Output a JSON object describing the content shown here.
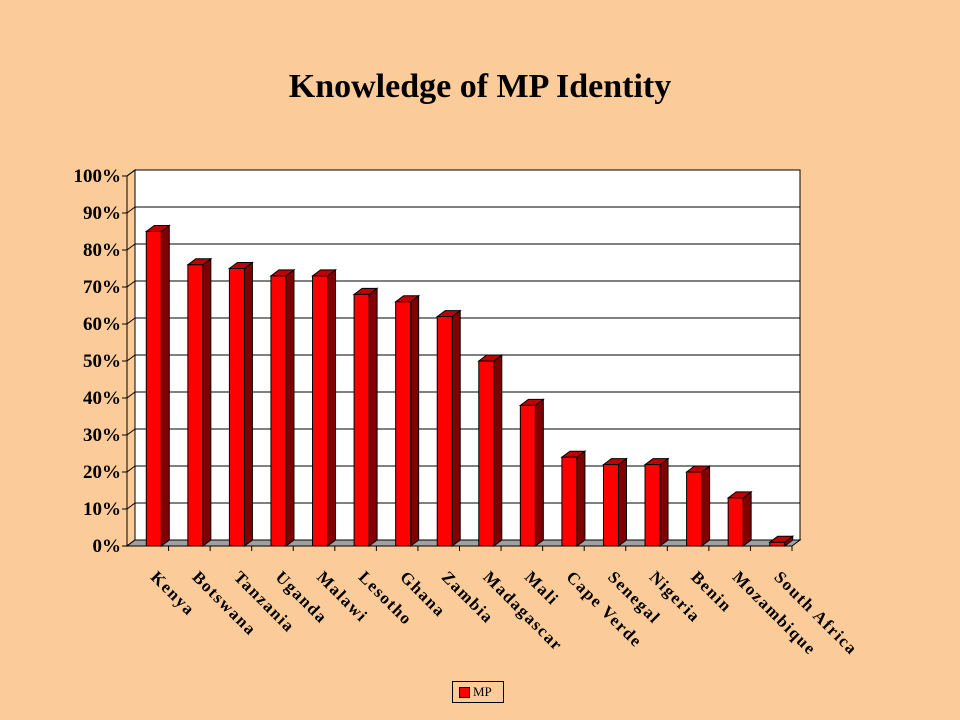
{
  "chart_data": {
    "type": "bar",
    "title": "Knowledge of MP Identity",
    "xlabel": "",
    "ylabel": "",
    "ylim": [
      0,
      100
    ],
    "yticks": [
      "0%",
      "10%",
      "20%",
      "30%",
      "40%",
      "50%",
      "60%",
      "70%",
      "80%",
      "90%",
      "100%"
    ],
    "categories": [
      "Kenya",
      "Botswana",
      "Tanzania",
      "Uganda",
      "Malawi",
      "Lesotho",
      "Ghana",
      "Zambia",
      "Madagascar",
      "Mali",
      "Cape Verde",
      "Senegal",
      "Nigeria",
      "Benin",
      "Mozambique",
      "South Africa"
    ],
    "series": [
      {
        "name": "MP",
        "values": [
          85,
          76,
          75,
          73,
          73,
          68,
          66,
          62,
          50,
          38,
          24,
          22,
          22,
          20,
          13,
          1
        ],
        "color": "#FF0000"
      }
    ],
    "grid": true,
    "legend_position": "bottom",
    "style": "3d-column"
  }
}
